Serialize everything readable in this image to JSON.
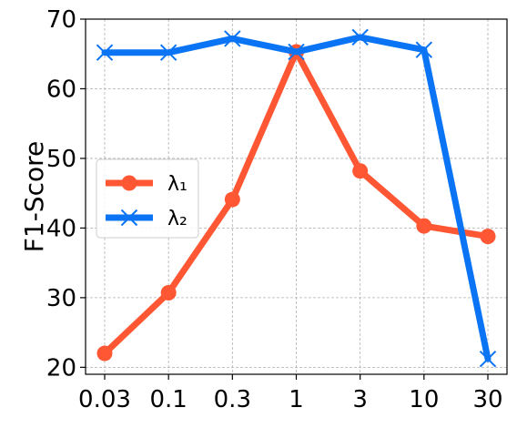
{
  "chart_data": {
    "type": "line",
    "ylabel": "F1-Score",
    "xlabel": "",
    "categories": [
      "0.03",
      "0.1",
      "0.3",
      "1",
      "3",
      "10",
      "30"
    ],
    "ylim": [
      19,
      70
    ],
    "yticks": [
      20,
      30,
      40,
      50,
      60,
      70
    ],
    "grid": true,
    "legend_position": "center-left",
    "series": [
      {
        "name": "λ₁",
        "color": "#FF5733",
        "marker": "circle",
        "values": [
          22.0,
          30.7,
          44.1,
          65.3,
          48.2,
          40.3,
          38.8
        ]
      },
      {
        "name": "λ₂",
        "color": "#0A74F5",
        "marker": "x",
        "values": [
          65.2,
          65.2,
          67.2,
          65.3,
          67.4,
          65.6,
          21.2
        ]
      }
    ]
  }
}
